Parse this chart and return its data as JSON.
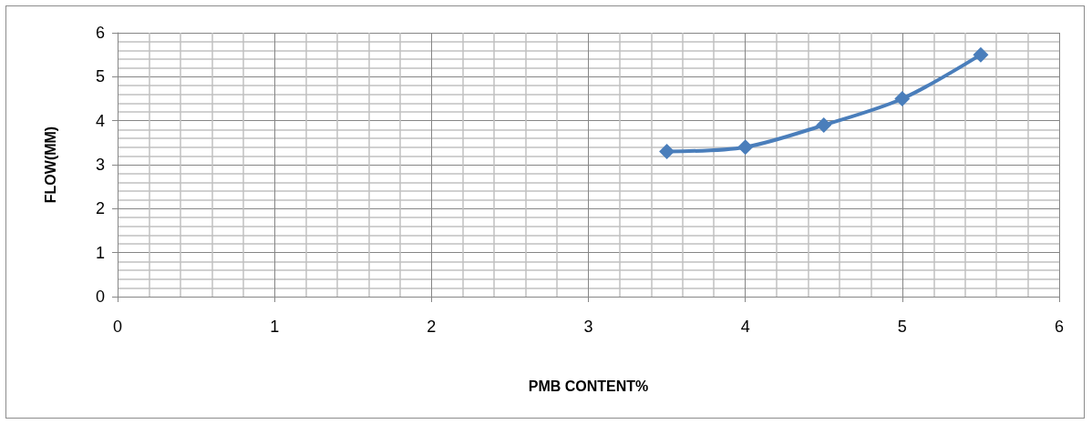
{
  "chart_data": {
    "type": "line",
    "xlabel": "PMB CONTENT%",
    "ylabel": "FLOW(MM)",
    "x": [
      3.5,
      4,
      4.5,
      5,
      5.5
    ],
    "values": [
      3.3,
      3.4,
      3.9,
      4.5,
      5.5
    ],
    "color": "#4a7ebb",
    "xlim": [
      0,
      6
    ],
    "xticks": [
      0,
      1,
      2,
      3,
      4,
      5,
      6
    ],
    "ylim": [
      0,
      6
    ],
    "yticks": [
      0,
      1,
      2,
      3,
      4,
      5,
      6
    ],
    "grid": true,
    "marker": "diamond",
    "line_style": "solid"
  }
}
